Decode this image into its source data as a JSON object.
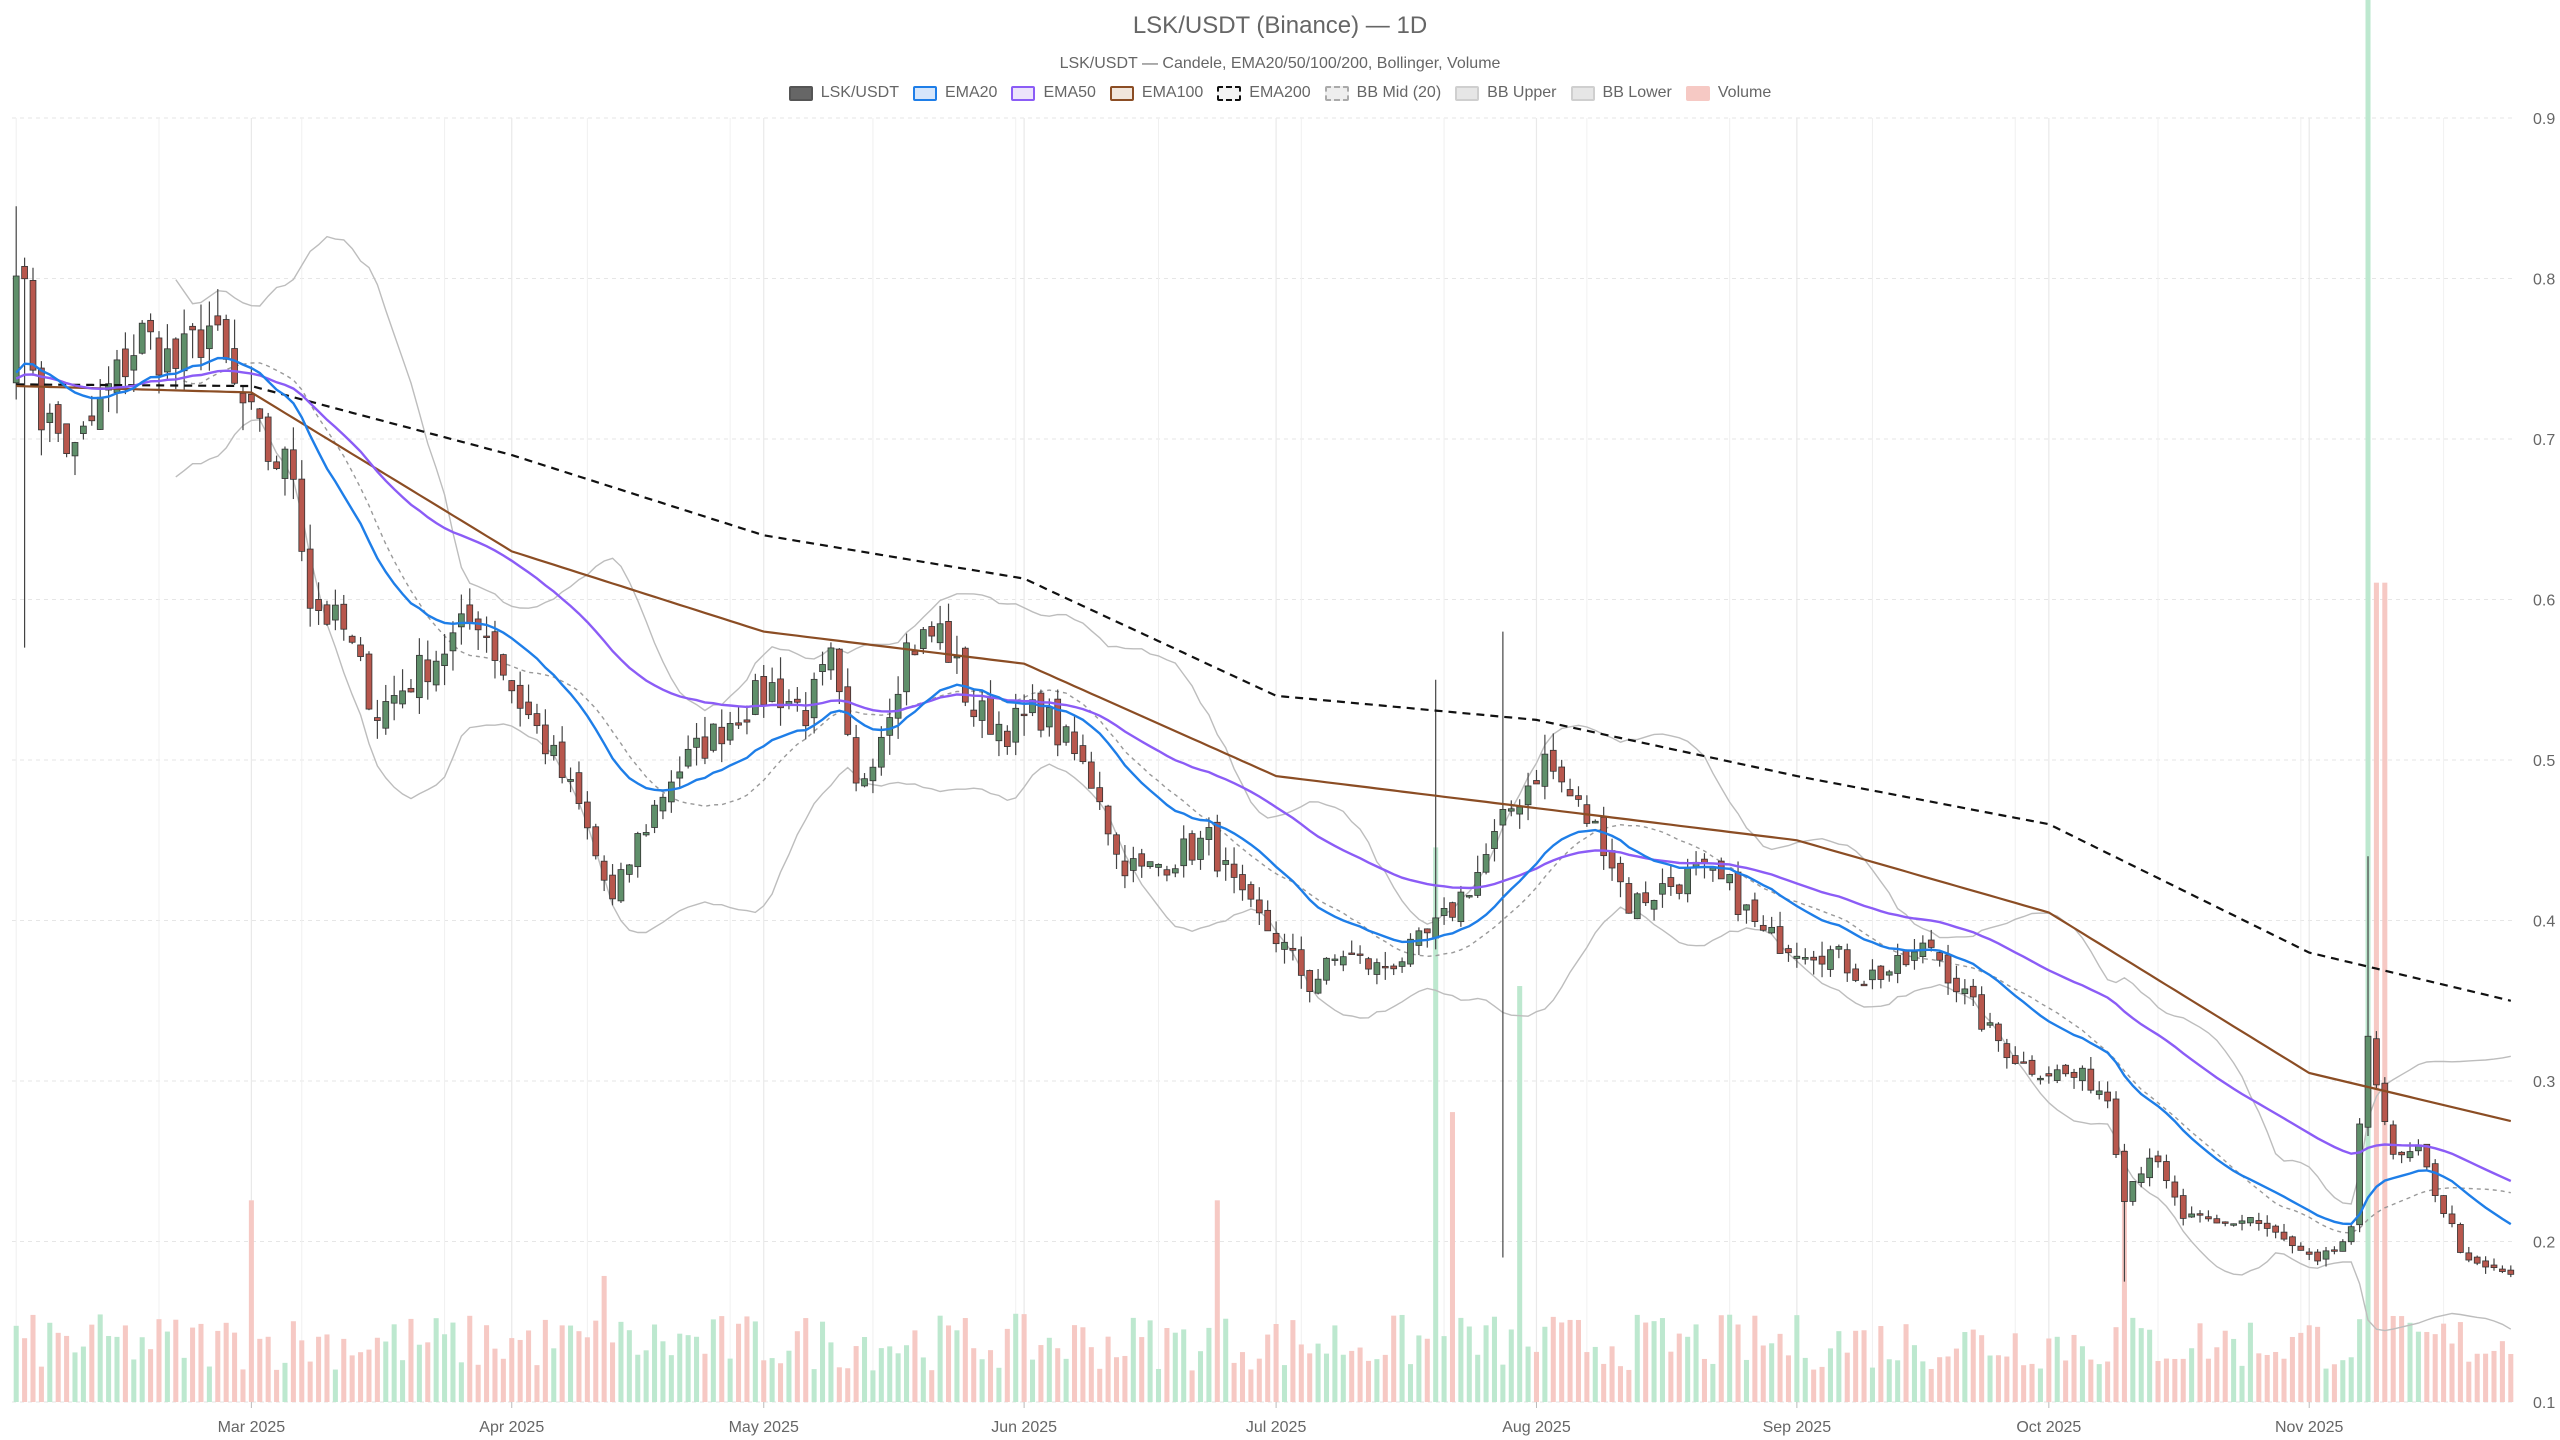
{
  "chart_data": {
    "type": "candlestick",
    "title": "LSK/USDT (Binance) — 1D",
    "subtitle": "LSK/USDT — Candele, EMA20/50/100/200, Bollinger, Volume",
    "legend": [
      {
        "name": "LSK/USDT",
        "fill": "#666666",
        "stroke": "#555555",
        "dash": false
      },
      {
        "name": "EMA20",
        "fill": "#d6e6fb",
        "stroke": "#1e7ee8",
        "dash": false
      },
      {
        "name": "EMA50",
        "fill": "#ece4fb",
        "stroke": "#8b5cf6",
        "dash": false
      },
      {
        "name": "EMA100",
        "fill": "#f1e6dc",
        "stroke": "#8b4d24",
        "dash": false
      },
      {
        "name": "EMA200",
        "fill": "#f4f4f4",
        "stroke": "#111111",
        "dash": true
      },
      {
        "name": "BB Mid (20)",
        "fill": "#eeeeee",
        "stroke": "#aaaaaa",
        "dash": true
      },
      {
        "name": "BB Upper",
        "fill": "#e6e6e6",
        "stroke": "#cfcfcf",
        "dash": false
      },
      {
        "name": "BB Lower",
        "fill": "#e6e6e6",
        "stroke": "#cfcfcf",
        "dash": false
      },
      {
        "name": "Volume",
        "fill": "#f6c9c4",
        "stroke": "#f6c9c4",
        "dash": false
      }
    ],
    "y_axis": {
      "min": 0.1,
      "max": 0.9,
      "ticks": [
        0.1,
        0.2,
        0.3,
        0.4,
        0.5,
        0.6,
        0.7,
        0.8,
        0.9
      ],
      "position": "right",
      "grid": true
    },
    "x_axis": {
      "ticks": [
        "Mar 2025",
        "Apr 2025",
        "May 2025",
        "Jun 2025",
        "Jul 2025",
        "Aug 2025",
        "Sep 2025",
        "Oct 2025",
        "Nov 2025"
      ],
      "grid": true
    },
    "date_range": [
      "2025-02-01",
      "2025-11-25"
    ],
    "colors": {
      "up": "#5f8f6a",
      "down": "#b8574d",
      "vol_up": "#bde8cf",
      "vol_down": "#f6c9c4",
      "ema20": "#1e7ee8",
      "ema50": "#8b5cf6",
      "ema100": "#8b4d24",
      "ema200": "#111111",
      "bb_mid": "#999999",
      "bb_band": "#bdbdbd"
    },
    "price_anchors": [
      [
        "2025-02-01",
        0.82
      ],
      [
        "2025-02-04",
        0.715
      ],
      [
        "2025-02-08",
        0.69
      ],
      [
        "2025-02-12",
        0.73
      ],
      [
        "2025-02-16",
        0.765
      ],
      [
        "2025-02-20",
        0.745
      ],
      [
        "2025-02-24",
        0.77
      ],
      [
        "2025-02-27",
        0.73
      ],
      [
        "2025-03-03",
        0.69
      ],
      [
        "2025-03-06",
        0.68
      ],
      [
        "2025-03-08",
        0.6
      ],
      [
        "2025-03-12",
        0.58
      ],
      [
        "2025-03-16",
        0.53
      ],
      [
        "2025-03-20",
        0.55
      ],
      [
        "2025-03-24",
        0.57
      ],
      [
        "2025-03-28",
        0.59
      ],
      [
        "2025-04-01",
        0.545
      ],
      [
        "2025-04-05",
        0.51
      ],
      [
        "2025-04-09",
        0.47
      ],
      [
        "2025-04-13",
        0.41
      ],
      [
        "2025-04-16",
        0.45
      ],
      [
        "2025-04-20",
        0.49
      ],
      [
        "2025-04-24",
        0.51
      ],
      [
        "2025-04-28",
        0.53
      ],
      [
        "2025-05-02",
        0.545
      ],
      [
        "2025-05-06",
        0.53
      ],
      [
        "2025-05-09",
        0.56
      ],
      [
        "2025-05-12",
        0.48
      ],
      [
        "2025-05-15",
        0.52
      ],
      [
        "2025-05-18",
        0.57
      ],
      [
        "2025-05-22",
        0.58
      ],
      [
        "2025-05-26",
        0.53
      ],
      [
        "2025-05-30",
        0.52
      ],
      [
        "2025-06-03",
        0.53
      ],
      [
        "2025-06-06",
        0.51
      ],
      [
        "2025-06-10",
        0.48
      ],
      [
        "2025-06-12",
        0.44
      ],
      [
        "2025-06-15",
        0.43
      ],
      [
        "2025-06-19",
        0.44
      ],
      [
        "2025-06-23",
        0.45
      ],
      [
        "2025-06-27",
        0.41
      ],
      [
        "2025-07-01",
        0.39
      ],
      [
        "2025-07-05",
        0.36
      ],
      [
        "2025-07-09",
        0.38
      ],
      [
        "2025-07-13",
        0.37
      ],
      [
        "2025-07-17",
        0.38
      ],
      [
        "2025-07-21",
        0.4
      ],
      [
        "2025-07-25",
        0.43
      ],
      [
        "2025-07-29",
        0.47
      ],
      [
        "2025-08-02",
        0.5
      ],
      [
        "2025-08-06",
        0.47
      ],
      [
        "2025-08-09",
        0.45
      ],
      [
        "2025-08-12",
        0.41
      ],
      [
        "2025-08-16",
        0.42
      ],
      [
        "2025-08-20",
        0.43
      ],
      [
        "2025-08-24",
        0.42
      ],
      [
        "2025-08-28",
        0.39
      ],
      [
        "2025-09-01",
        0.385
      ],
      [
        "2025-09-05",
        0.38
      ],
      [
        "2025-09-09",
        0.365
      ],
      [
        "2025-09-13",
        0.37
      ],
      [
        "2025-09-17",
        0.385
      ],
      [
        "2025-09-20",
        0.36
      ],
      [
        "2025-09-24",
        0.33
      ],
      [
        "2025-09-28",
        0.31
      ],
      [
        "2025-10-02",
        0.305
      ],
      [
        "2025-10-06",
        0.3
      ],
      [
        "2025-10-08",
        0.29
      ],
      [
        "2025-10-10",
        0.23
      ],
      [
        "2025-10-13",
        0.255
      ],
      [
        "2025-10-17",
        0.215
      ],
      [
        "2025-10-21",
        0.21
      ],
      [
        "2025-10-25",
        0.215
      ],
      [
        "2025-10-29",
        0.2
      ],
      [
        "2025-11-02",
        0.185
      ],
      [
        "2025-11-06",
        0.205
      ],
      [
        "2025-11-08",
        0.33
      ],
      [
        "2025-11-11",
        0.25
      ],
      [
        "2025-11-14",
        0.255
      ],
      [
        "2025-11-17",
        0.22
      ],
      [
        "2025-11-20",
        0.185
      ],
      [
        "2025-11-25",
        0.18
      ]
    ],
    "ema200_anchors": [
      [
        "2025-02-01",
        0.734
      ],
      [
        "2025-03-01",
        0.733
      ],
      [
        "2025-04-01",
        0.69
      ],
      [
        "2025-05-01",
        0.64
      ],
      [
        "2025-06-01",
        0.613
      ],
      [
        "2025-07-01",
        0.54
      ],
      [
        "2025-08-01",
        0.525
      ],
      [
        "2025-09-01",
        0.49
      ],
      [
        "2025-10-01",
        0.46
      ],
      [
        "2025-11-01",
        0.38
      ],
      [
        "2025-11-25",
        0.35
      ]
    ],
    "ema100_anchors": [
      [
        "2025-02-01",
        0.733
      ],
      [
        "2025-03-01",
        0.729
      ],
      [
        "2025-04-01",
        0.63
      ],
      [
        "2025-05-01",
        0.58
      ],
      [
        "2025-06-01",
        0.56
      ],
      [
        "2025-07-01",
        0.49
      ],
      [
        "2025-08-01",
        0.47
      ],
      [
        "2025-09-01",
        0.45
      ],
      [
        "2025-10-01",
        0.405
      ],
      [
        "2025-11-01",
        0.305
      ],
      [
        "2025-11-25",
        0.275
      ]
    ],
    "volume_spikes": [
      [
        "2025-03-01",
        1.6
      ],
      [
        "2025-04-12",
        1.0
      ],
      [
        "2025-06-24",
        1.6
      ],
      [
        "2025-07-20",
        4.4
      ],
      [
        "2025-07-22",
        2.3
      ],
      [
        "2025-07-30",
        3.3
      ],
      [
        "2025-10-10",
        2.0
      ],
      [
        "2025-11-08",
        11.9
      ],
      [
        "2025-11-09",
        6.5
      ],
      [
        "2025-11-10",
        6.5
      ]
    ]
  }
}
